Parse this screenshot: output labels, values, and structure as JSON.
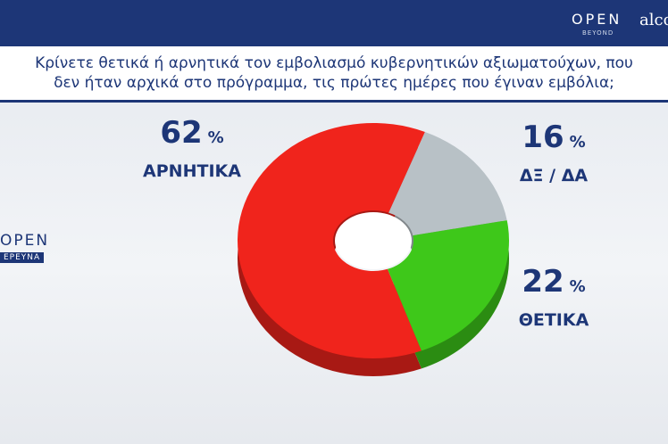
{
  "branding": {
    "channel": "OPEN",
    "tagline": "BEYOND",
    "pollster": "alco",
    "side": "OPEN",
    "side_sub": "ΕΡΕΥΝΑ"
  },
  "chart_data": {
    "type": "pie",
    "donut": true,
    "title": "Κρίνετε θετικά ή αρνητικά τον εμβολιασμό κυβερνητικών αξιωματούχων, που δεν ήταν αρχικά στο πρόγραμμα, τις πρώτες ημέρες που έγιναν εμβόλια;",
    "categories": [
      "ΑΡΝΗΤΙΚΑ",
      "ΔΞ / ΔΑ",
      "ΘΕΤΙΚΑ"
    ],
    "values": [
      62,
      16,
      22
    ],
    "unit": "%",
    "colors": [
      "#f0241c",
      "#b8c1c6",
      "#3ec81a"
    ]
  }
}
